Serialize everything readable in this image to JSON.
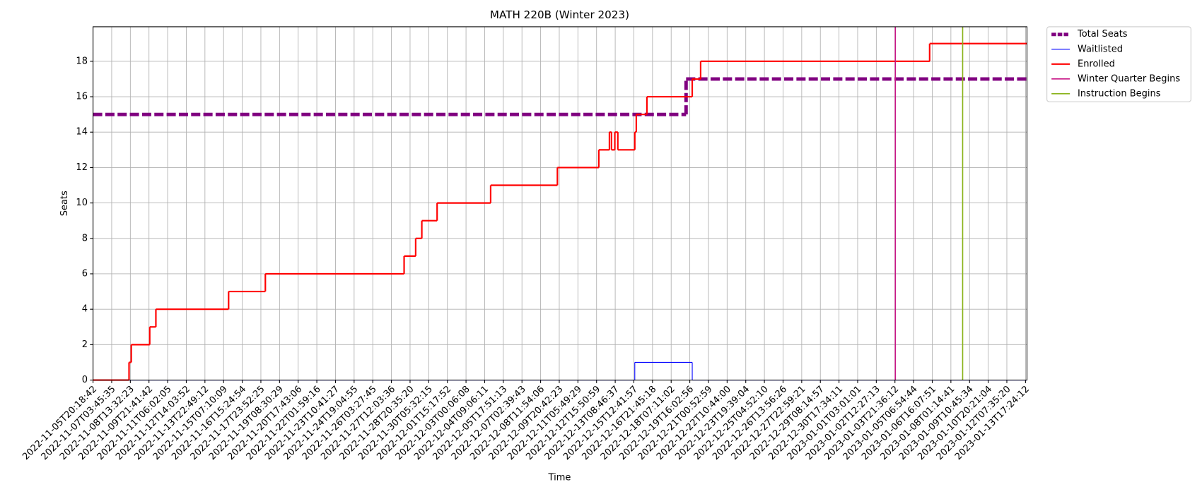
{
  "chart_data": {
    "type": "step-line",
    "title": "MATH 220B (Winter 2023)",
    "xlabel": "Time",
    "ylabel": "Seats",
    "xlim": [
      0,
      50.08
    ],
    "ylim": [
      0,
      19.95
    ],
    "yticks": [
      0,
      2,
      4,
      6,
      8,
      10,
      12,
      14,
      16,
      18
    ],
    "grid": true,
    "legend": "outside-upper-right",
    "xticks": [
      {
        "value": 0,
        "label": "2022-11-05T20:18:42"
      },
      {
        "value": 1,
        "label": "2022-11-07T03:45:35"
      },
      {
        "value": 2,
        "label": "2022-11-08T13:32:23"
      },
      {
        "value": 3,
        "label": "2022-11-09T21:41:42"
      },
      {
        "value": 4,
        "label": "2022-11-11T06:02:05"
      },
      {
        "value": 5,
        "label": "2022-11-12T14:03:52"
      },
      {
        "value": 6,
        "label": "2022-11-13T22:49:12"
      },
      {
        "value": 7,
        "label": "2022-11-15T07:10:09"
      },
      {
        "value": 8,
        "label": "2022-11-16T15:24:54"
      },
      {
        "value": 9,
        "label": "2022-11-17T23:52:25"
      },
      {
        "value": 10,
        "label": "2022-11-19T08:30:29"
      },
      {
        "value": 11,
        "label": "2022-11-20T17:43:06"
      },
      {
        "value": 12,
        "label": "2022-11-22T01:59:16"
      },
      {
        "value": 13,
        "label": "2022-11-23T10:41:27"
      },
      {
        "value": 14,
        "label": "2022-11-24T19:04:55"
      },
      {
        "value": 15,
        "label": "2022-11-26T03:27:45"
      },
      {
        "value": 16,
        "label": "2022-11-27T12:03:36"
      },
      {
        "value": 17,
        "label": "2022-11-28T20:35:20"
      },
      {
        "value": 18,
        "label": "2022-11-30T05:32:15"
      },
      {
        "value": 19,
        "label": "2022-12-01T15:17:52"
      },
      {
        "value": 20,
        "label": "2022-12-03T00:06:08"
      },
      {
        "value": 21,
        "label": "2022-12-04T09:06:11"
      },
      {
        "value": 22,
        "label": "2022-12-05T17:51:13"
      },
      {
        "value": 23,
        "label": "2022-12-07T02:39:43"
      },
      {
        "value": 24,
        "label": "2022-12-08T11:54:06"
      },
      {
        "value": 25,
        "label": "2022-12-09T20:42:23"
      },
      {
        "value": 26,
        "label": "2022-12-11T05:49:29"
      },
      {
        "value": 27,
        "label": "2022-12-12T15:50:59"
      },
      {
        "value": 28,
        "label": "2022-12-13T08:46:37"
      },
      {
        "value": 29,
        "label": "2022-12-15T12:41:57"
      },
      {
        "value": 30,
        "label": "2022-12-16T21:45:18"
      },
      {
        "value": 31,
        "label": "2022-12-18T07:11:02"
      },
      {
        "value": 32,
        "label": "2022-12-19T16:02:56"
      },
      {
        "value": 33,
        "label": "2022-12-21T00:52:59"
      },
      {
        "value": 34,
        "label": "2022-12-22T10:44:00"
      },
      {
        "value": 35,
        "label": "2022-12-23T19:39:04"
      },
      {
        "value": 36,
        "label": "2022-12-25T04:52:10"
      },
      {
        "value": 37,
        "label": "2022-12-26T13:56:26"
      },
      {
        "value": 38,
        "label": "2022-12-27T22:59:21"
      },
      {
        "value": 39,
        "label": "2022-12-29T08:14:57"
      },
      {
        "value": 40,
        "label": "2022-12-30T17:34:11"
      },
      {
        "value": 41,
        "label": "2023-01-01T03:01:01"
      },
      {
        "value": 42,
        "label": "2023-01-02T12:27:13"
      },
      {
        "value": 43,
        "label": "2023-01-03T21:36:12"
      },
      {
        "value": 44,
        "label": "2023-01-05T06:54:44"
      },
      {
        "value": 45,
        "label": "2023-01-06T16:07:51"
      },
      {
        "value": 46,
        "label": "2023-01-08T01:14:41"
      },
      {
        "value": 47,
        "label": "2023-01-09T10:45:34"
      },
      {
        "value": 48,
        "label": "2023-01-10T20:21:04"
      },
      {
        "value": 49,
        "label": "2023-01-12T07:35:20"
      },
      {
        "value": 50,
        "label": "2023-01-13T17:24:12"
      }
    ],
    "series": [
      {
        "name": "Total Seats",
        "color": "#800080",
        "dashed": true,
        "x": [
          0,
          31.8
        ],
        "values": [
          15,
          17
        ]
      },
      {
        "name": "Waitlisted",
        "color": "#0000ff",
        "x": [
          0,
          29.05,
          32.13
        ],
        "values": [
          0,
          1,
          0
        ]
      },
      {
        "name": "Enrolled",
        "color": "#ff0000",
        "x": [
          0,
          1.93,
          2.05,
          3.04,
          3.37,
          7.27,
          9.24,
          16.68,
          17.3,
          17.63,
          18.45,
          21.32,
          24.9,
          27.12,
          27.69,
          27.8,
          27.98,
          28.14,
          29.05,
          29.13,
          29.7,
          32.13,
          32.58,
          44.86
        ],
        "values": [
          0,
          1,
          2,
          3,
          4,
          5,
          6,
          7,
          8,
          9,
          10,
          11,
          12,
          13,
          14,
          13,
          14,
          13,
          14,
          15,
          16,
          17,
          18,
          19
        ]
      },
      {
        "name": "Winter Quarter Begins",
        "color": "#c71585",
        "x": [
          43.02
        ]
      },
      {
        "name": "Instruction Begins",
        "color": "#8ab31a",
        "x": [
          46.63
        ]
      }
    ]
  }
}
